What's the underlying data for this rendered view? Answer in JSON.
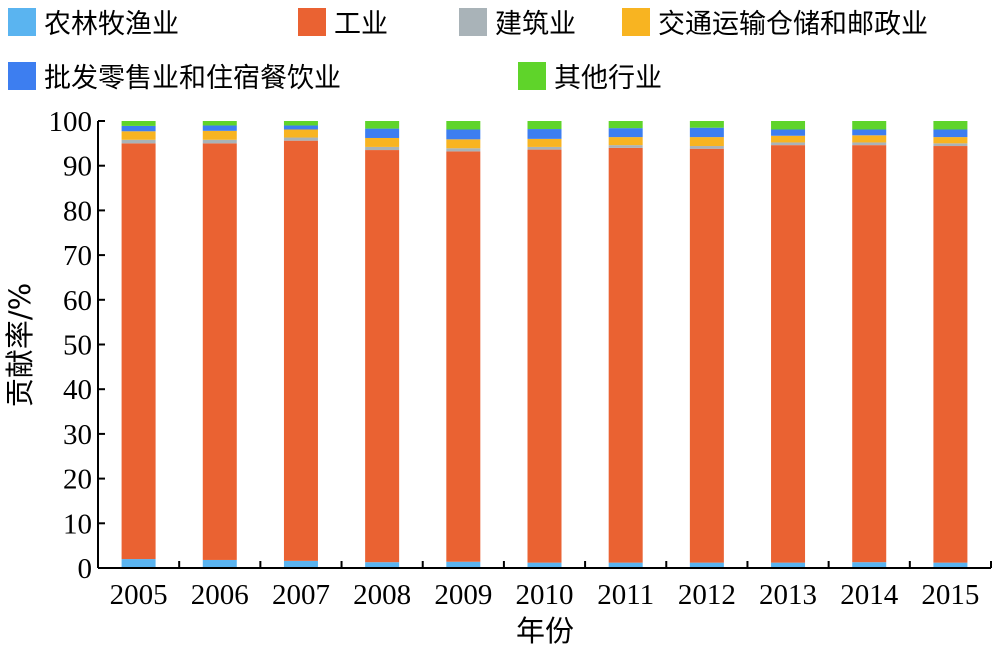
{
  "chart_data": {
    "type": "bar",
    "stacked": true,
    "categories": [
      "2005",
      "2006",
      "2007",
      "2008",
      "2009",
      "2010",
      "2011",
      "2012",
      "2013",
      "2014",
      "2015"
    ],
    "xlabel": "年份",
    "ylabel": "贡献率/%",
    "ylim": [
      0,
      100
    ],
    "yticks": [
      0,
      10,
      20,
      30,
      40,
      50,
      60,
      70,
      80,
      90,
      100
    ],
    "legend_position": "top",
    "grid": false,
    "series": [
      {
        "name": "农林牧渔业",
        "color": "#5ab4f0",
        "values": [
          2.0,
          1.8,
          1.6,
          1.3,
          1.4,
          1.2,
          1.2,
          1.2,
          1.2,
          1.3,
          1.2
        ]
      },
      {
        "name": "工业",
        "color": "#ea6232",
        "values": [
          93.0,
          93.2,
          94.0,
          92.2,
          91.8,
          92.4,
          92.8,
          92.6,
          93.4,
          93.3,
          93.2
        ]
      },
      {
        "name": "建筑业",
        "color": "#a9b3b8",
        "values": [
          0.8,
          0.8,
          0.7,
          0.7,
          0.7,
          0.6,
          0.6,
          0.6,
          0.6,
          0.6,
          0.6
        ]
      },
      {
        "name": "交通运输仓储和邮政业",
        "color": "#f8b421",
        "values": [
          1.9,
          2.0,
          1.8,
          2.0,
          2.0,
          1.8,
          1.8,
          2.0,
          1.5,
          1.6,
          1.4
        ]
      },
      {
        "name": "批发零售业和住宿餐饮业",
        "color": "#3d7ef0",
        "values": [
          1.2,
          1.2,
          0.9,
          2.1,
          2.2,
          2.2,
          2.0,
          2.1,
          1.4,
          1.3,
          1.7
        ]
      },
      {
        "name": "其他行业",
        "color": "#5fd42a",
        "values": [
          1.1,
          1.0,
          1.0,
          1.7,
          1.9,
          1.8,
          1.6,
          1.5,
          1.9,
          1.9,
          1.9
        ]
      }
    ]
  }
}
